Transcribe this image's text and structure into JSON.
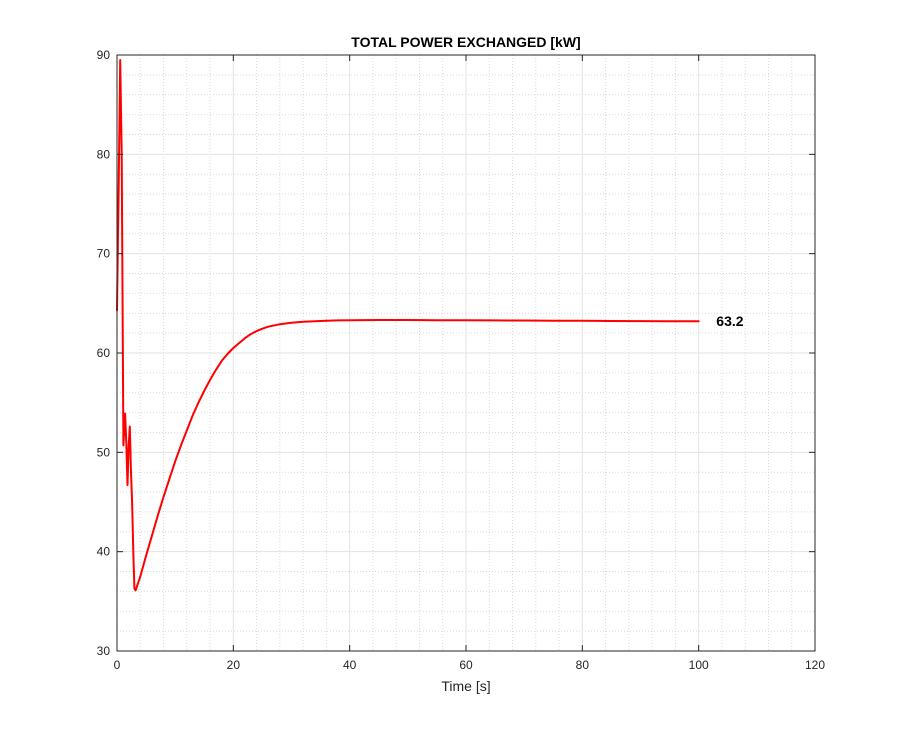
{
  "chart_data": {
    "type": "line",
    "title": "TOTAL POWER EXCHANGED [kW]",
    "xlabel": "Time [s]",
    "ylabel": "",
    "xlim": [
      0,
      120
    ],
    "ylim": [
      30,
      90
    ],
    "xticks": [
      0,
      20,
      40,
      60,
      80,
      100,
      120
    ],
    "yticks": [
      30,
      40,
      50,
      60,
      70,
      80,
      90
    ],
    "xtick_labels": [
      "0",
      "20",
      "40",
      "60",
      "80",
      "100",
      "120"
    ],
    "ytick_labels": [
      "30",
      "40",
      "50",
      "60",
      "70",
      "80",
      "90"
    ],
    "grid": true,
    "minor_grid": true,
    "legend": "none",
    "series": [
      {
        "color": "#ff0000",
        "x": [
          0,
          0.3,
          0.55,
          0.8,
          1.1,
          1.4,
          1.6,
          1.8,
          2.0,
          2.2,
          2.4,
          2.6,
          2.8,
          3.0,
          3.2,
          4,
          5,
          6,
          7,
          8,
          9,
          10,
          11,
          12,
          13,
          14,
          15,
          16,
          17,
          18,
          19,
          20,
          21,
          22,
          23,
          24,
          25,
          26,
          28,
          30,
          32,
          34,
          36,
          38,
          40,
          45,
          50,
          55,
          60,
          65,
          70,
          75,
          80,
          85,
          90,
          95,
          100
        ],
        "y": [
          64.3,
          77.0,
          89.5,
          80.0,
          50.7,
          53.9,
          51.0,
          46.7,
          50.5,
          52.6,
          48.0,
          45.0,
          40.0,
          36.3,
          36.1,
          37.5,
          39.6,
          41.6,
          43.6,
          45.5,
          47.3,
          49.1,
          50.7,
          52.2,
          53.7,
          55.0,
          56.2,
          57.3,
          58.3,
          59.2,
          59.9,
          60.5,
          61.0,
          61.5,
          61.9,
          62.2,
          62.45,
          62.65,
          62.9,
          63.05,
          63.15,
          63.2,
          63.25,
          63.28,
          63.3,
          63.32,
          63.32,
          63.3,
          63.3,
          63.28,
          63.27,
          63.25,
          63.24,
          63.22,
          63.21,
          63.2,
          63.2
        ]
      }
    ],
    "annotations": [
      {
        "text": "63.2",
        "x": 102,
        "y": 63.2
      }
    ]
  }
}
